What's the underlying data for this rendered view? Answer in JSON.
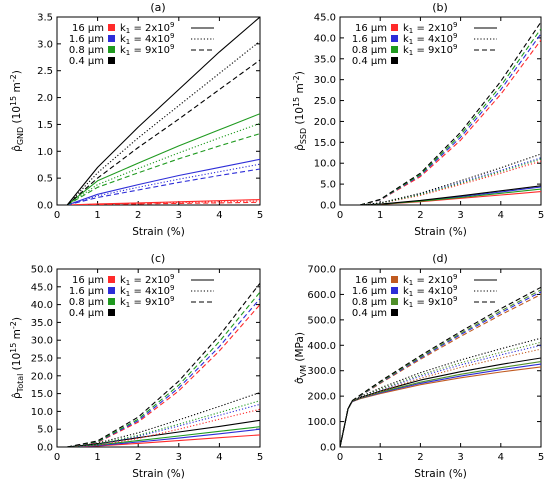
{
  "figure": {
    "colors": {
      "16um": "#ff2a2a",
      "1.6um": "#2d2dd8",
      "0.8um": "#1f9a1f",
      "0.4um": "#000000",
      "16um_sigma": "#c05a20",
      "0.8um_sigma": "#4f8f2a"
    },
    "legend": {
      "sizes": [
        "16 µm",
        "1.6 µm",
        "0.8 µm",
        "0.4 µm"
      ],
      "k1_base": "k",
      "k1_sub": "1",
      "k1_values": [
        {
          "eq": " = 2x10",
          "exp": "9",
          "style": "solid"
        },
        {
          "eq": " = 4x10",
          "exp": "9",
          "style": "dotted"
        },
        {
          "eq": " = 9x10",
          "exp": "9",
          "style": "dashed"
        }
      ]
    }
  },
  "chart_data": [
    {
      "type": "line",
      "panel": "(a)",
      "xlabel": "Strain (%)",
      "ylabel": "ρ̂GND (10¹⁵ m⁻²)",
      "ylabel_main": "ρ̂",
      "ylabel_sub": "GND",
      "ylabel_units": " (10",
      "ylabel_exp1": "15",
      "ylabel_mid": " m",
      "ylabel_exp2": "-2",
      "ylabel_end": ")",
      "xlim": [
        0,
        5
      ],
      "ylim": [
        0,
        3.5
      ],
      "xticks": [
        "0",
        "1",
        "2",
        "3",
        "4",
        "5"
      ],
      "yticks": [
        "0.0",
        "0.5",
        "1.0",
        "1.5",
        "2.0",
        "2.5",
        "3.0",
        "3.5"
      ],
      "x": [
        0.25,
        1,
        2,
        3,
        4,
        5
      ],
      "series": [
        {
          "size": "16 µm",
          "k1": "2x10^9",
          "style": "solid",
          "values": [
            0,
            0.02,
            0.04,
            0.06,
            0.08,
            0.1
          ]
        },
        {
          "size": "16 µm",
          "k1": "4x10^9",
          "style": "dotted",
          "values": [
            0,
            0.015,
            0.03,
            0.045,
            0.06,
            0.075
          ]
        },
        {
          "size": "16 µm",
          "k1": "9x10^9",
          "style": "dashed",
          "values": [
            0,
            0.01,
            0.02,
            0.03,
            0.04,
            0.05
          ]
        },
        {
          "size": "1.6 µm",
          "k1": "2x10^9",
          "style": "solid",
          "values": [
            0,
            0.2,
            0.38,
            0.55,
            0.7,
            0.85
          ]
        },
        {
          "size": "1.6 µm",
          "k1": "4x10^9",
          "style": "dotted",
          "values": [
            0,
            0.17,
            0.33,
            0.48,
            0.62,
            0.76
          ]
        },
        {
          "size": "1.6 µm",
          "k1": "9x10^9",
          "style": "dashed",
          "values": [
            0,
            0.14,
            0.28,
            0.42,
            0.55,
            0.67
          ]
        },
        {
          "size": "0.8 µm",
          "k1": "2x10^9",
          "style": "solid",
          "values": [
            0,
            0.45,
            0.78,
            1.1,
            1.4,
            1.7
          ]
        },
        {
          "size": "0.8 µm",
          "k1": "4x10^9",
          "style": "dotted",
          "values": [
            0,
            0.38,
            0.68,
            0.97,
            1.25,
            1.52
          ]
        },
        {
          "size": "0.8 µm",
          "k1": "9x10^9",
          "style": "dashed",
          "values": [
            0,
            0.33,
            0.6,
            0.86,
            1.1,
            1.33
          ]
        },
        {
          "size": "0.4 µm",
          "k1": "2x10^9",
          "style": "solid",
          "values": [
            0,
            0.7,
            1.45,
            2.15,
            2.85,
            3.5
          ]
        },
        {
          "size": "0.4 µm",
          "k1": "4x10^9",
          "style": "dotted",
          "values": [
            0,
            0.6,
            1.25,
            1.85,
            2.45,
            3.05
          ]
        },
        {
          "size": "0.4 µm",
          "k1": "9x10^9",
          "style": "dashed",
          "values": [
            0,
            0.5,
            1.07,
            1.6,
            2.15,
            2.7
          ]
        }
      ]
    },
    {
      "type": "line",
      "panel": "(b)",
      "xlabel": "Strain (%)",
      "ylabel_main": "ρ̂",
      "ylabel_sub": "SSD",
      "ylabel_units": " (10",
      "ylabel_exp1": "15",
      "ylabel_mid": " m",
      "ylabel_exp2": "-2",
      "ylabel_end": ")",
      "xlim": [
        0,
        5
      ],
      "ylim": [
        0,
        45
      ],
      "xticks": [
        "0",
        "1",
        "2",
        "3",
        "4",
        "5"
      ],
      "yticks": [
        "0.0",
        "5.0",
        "10.0",
        "15.0",
        "20.0",
        "25.0",
        "30.0",
        "35.0",
        "40.0",
        "45.0"
      ],
      "x": [
        0.5,
        1,
        2,
        3,
        4,
        5
      ],
      "series": [
        {
          "size": "16 µm",
          "k1": "2x10^9",
          "style": "solid",
          "values": [
            0,
            0.15,
            0.8,
            1.6,
            2.4,
            3.2
          ]
        },
        {
          "size": "1.6 µm",
          "k1": "2x10^9",
          "style": "solid",
          "values": [
            0,
            0.2,
            1.0,
            2.0,
            3.1,
            4.3
          ]
        },
        {
          "size": "0.8 µm",
          "k1": "2x10^9",
          "style": "solid",
          "values": [
            0,
            0.18,
            0.9,
            1.8,
            2.8,
            3.8
          ]
        },
        {
          "size": "0.4 µm",
          "k1": "2x10^9",
          "style": "solid",
          "values": [
            0,
            0.22,
            1.1,
            2.2,
            3.4,
            4.6
          ]
        },
        {
          "size": "16 µm",
          "k1": "4x10^9",
          "style": "dotted",
          "values": [
            0,
            0.4,
            2.3,
            4.9,
            7.6,
            10.5
          ]
        },
        {
          "size": "1.6 µm",
          "k1": "4x10^9",
          "style": "dotted",
          "values": [
            0,
            0.45,
            2.6,
            5.4,
            8.3,
            11.3
          ]
        },
        {
          "size": "0.8 µm",
          "k1": "4x10^9",
          "style": "dotted",
          "values": [
            0,
            0.42,
            2.5,
            5.2,
            8.0,
            11.0
          ]
        },
        {
          "size": "0.4 µm",
          "k1": "4x10^9",
          "style": "dotted",
          "values": [
            0,
            0.5,
            2.8,
            5.8,
            8.9,
            12.2
          ]
        },
        {
          "size": "16 µm",
          "k1": "9x10^9",
          "style": "dashed",
          "values": [
            0,
            1.2,
            6.8,
            15.5,
            26.5,
            39.5
          ]
        },
        {
          "size": "1.6 µm",
          "k1": "9x10^9",
          "style": "dashed",
          "values": [
            0,
            1.25,
            7.1,
            16.2,
            27.6,
            41.0
          ]
        },
        {
          "size": "0.8 µm",
          "k1": "9x10^9",
          "style": "dashed",
          "values": [
            0,
            1.3,
            7.3,
            16.8,
            28.5,
            42.2
          ]
        },
        {
          "size": "0.4 µm",
          "k1": "9x10^9",
          "style": "dashed",
          "values": [
            0,
            1.35,
            7.6,
            17.4,
            29.6,
            43.8
          ]
        }
      ]
    },
    {
      "type": "line",
      "panel": "(c)",
      "xlabel": "Strain (%)",
      "ylabel_main": "ρ̂",
      "ylabel_sub": "Total",
      "ylabel_units": " (10",
      "ylabel_exp1": "15",
      "ylabel_mid": " m",
      "ylabel_exp2": "-2",
      "ylabel_end": ")",
      "xlim": [
        0,
        5
      ],
      "ylim": [
        0,
        50
      ],
      "xticks": [
        "0",
        "1",
        "2",
        "3",
        "4",
        "5"
      ],
      "yticks": [
        "0.0",
        "5.0",
        "10.0",
        "15.0",
        "20.0",
        "25.0",
        "30.0",
        "35.0",
        "40.0",
        "45.0",
        "50.0"
      ],
      "x": [
        0.25,
        1,
        2,
        3,
        4,
        5
      ],
      "series": [
        {
          "size": "16 µm",
          "k1": "2x10^9",
          "style": "solid",
          "values": [
            0,
            0.3,
            1.0,
            1.8,
            2.6,
            3.4
          ]
        },
        {
          "size": "1.6 µm",
          "k1": "2x10^9",
          "style": "solid",
          "values": [
            0,
            0.4,
            1.4,
            2.5,
            3.7,
            5.0
          ]
        },
        {
          "size": "0.8 µm",
          "k1": "2x10^9",
          "style": "solid",
          "values": [
            0,
            0.6,
            1.8,
            3.1,
            4.4,
            5.7
          ]
        },
        {
          "size": "0.4 µm",
          "k1": "2x10^9",
          "style": "solid",
          "values": [
            0,
            0.9,
            2.6,
            4.2,
            5.8,
            7.5
          ]
        },
        {
          "size": "16 µm",
          "k1": "4x10^9",
          "style": "dotted",
          "values": [
            0,
            0.5,
            2.4,
            5.0,
            7.8,
            10.6
          ]
        },
        {
          "size": "1.6 µm",
          "k1": "4x10^9",
          "style": "dotted",
          "values": [
            0,
            0.7,
            3.0,
            5.9,
            8.9,
            12.0
          ]
        },
        {
          "size": "0.8 µm",
          "k1": "4x10^9",
          "style": "dotted",
          "values": [
            0,
            0.85,
            3.3,
            6.4,
            9.7,
            13.0
          ]
        },
        {
          "size": "0.4 µm",
          "k1": "4x10^9",
          "style": "dotted",
          "values": [
            0,
            1.1,
            4.0,
            7.6,
            11.4,
            15.3
          ]
        },
        {
          "size": "16 µm",
          "k1": "9x10^9",
          "style": "dashed",
          "values": [
            0,
            1.3,
            7.0,
            15.8,
            27.0,
            40.0
          ]
        },
        {
          "size": "1.6 µm",
          "k1": "9x10^9",
          "style": "dashed",
          "values": [
            0,
            1.4,
            7.4,
            16.6,
            28.2,
            41.7
          ]
        },
        {
          "size": "0.8 µm",
          "k1": "9x10^9",
          "style": "dashed",
          "values": [
            0,
            1.5,
            7.8,
            17.4,
            29.6,
            43.5
          ]
        },
        {
          "size": "0.4 µm",
          "k1": "9x10^9",
          "style": "dashed",
          "values": [
            0,
            1.7,
            8.4,
            18.5,
            31.3,
            46.0
          ]
        }
      ]
    },
    {
      "type": "line",
      "panel": "(d)",
      "xlabel": "Strain (%)",
      "ylabel_main": "σ̂",
      "ylabel_sub": "VM",
      "ylabel_units": " (MPa)",
      "ylabel_exp1": "",
      "ylabel_mid": "",
      "ylabel_exp2": "",
      "ylabel_end": "",
      "xlim": [
        0,
        5
      ],
      "ylim": [
        0,
        700
      ],
      "xticks": [
        "0",
        "1",
        "2",
        "3",
        "4",
        "5"
      ],
      "yticks": [
        "0.0",
        "100.0",
        "200.0",
        "300.0",
        "400.0",
        "500.0",
        "600.0",
        "700.0"
      ],
      "x": [
        0,
        0.2,
        0.3,
        0.5,
        1,
        2,
        3,
        4,
        5
      ],
      "series": [
        {
          "size": "16 µm",
          "k1": "2x10^9",
          "style": "solid",
          "values": [
            0,
            150,
            178,
            190,
            210,
            245,
            272,
            295,
            315
          ]
        },
        {
          "size": "1.6 µm",
          "k1": "2x10^9",
          "style": "solid",
          "values": [
            0,
            150,
            178,
            191,
            213,
            250,
            279,
            304,
            326
          ]
        },
        {
          "size": "0.8 µm",
          "k1": "2x10^9",
          "style": "solid",
          "values": [
            0,
            150,
            179,
            192,
            216,
            255,
            286,
            312,
            336
          ]
        },
        {
          "size": "0.4 µm",
          "k1": "2x10^9",
          "style": "solid",
          "values": [
            0,
            150,
            180,
            194,
            220,
            263,
            296,
            325,
            350
          ]
        },
        {
          "size": "16 µm",
          "k1": "4x10^9",
          "style": "dotted",
          "values": [
            0,
            150,
            178,
            192,
            220,
            270,
            313,
            350,
            385
          ]
        },
        {
          "size": "1.6 µm",
          "k1": "4x10^9",
          "style": "dotted",
          "values": [
            0,
            150,
            179,
            194,
            224,
            278,
            323,
            362,
            400
          ]
        },
        {
          "size": "0.8 µm",
          "k1": "4x10^9",
          "style": "dotted",
          "values": [
            0,
            150,
            180,
            195,
            227,
            284,
            331,
            372,
            412
          ]
        },
        {
          "size": "0.4 µm",
          "k1": "4x10^9",
          "style": "dotted",
          "values": [
            0,
            150,
            181,
            197,
            232,
            292,
            342,
            386,
            428
          ]
        },
        {
          "size": "16 µm",
          "k1": "9x10^9",
          "style": "dashed",
          "values": [
            0,
            150,
            180,
            200,
            250,
            345,
            435,
            520,
            600
          ]
        },
        {
          "size": "1.6 µm",
          "k1": "9x10^9",
          "style": "dashed",
          "values": [
            0,
            150,
            181,
            201,
            253,
            350,
            442,
            528,
            610
          ]
        },
        {
          "size": "0.8 µm",
          "k1": "9x10^9",
          "style": "dashed",
          "values": [
            0,
            150,
            181,
            202,
            255,
            354,
            447,
            535,
            618
          ]
        },
        {
          "size": "0.4 µm",
          "k1": "9x10^9",
          "style": "dashed",
          "values": [
            0,
            150,
            182,
            204,
            258,
            359,
            454,
            544,
            628
          ]
        }
      ]
    }
  ]
}
